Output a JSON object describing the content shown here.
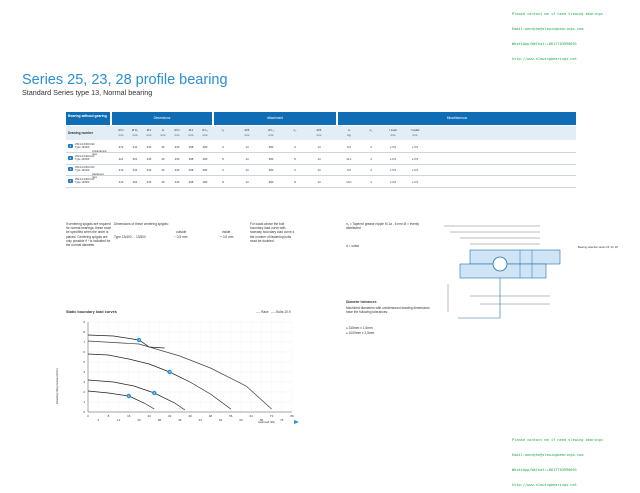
{
  "watermark_top": [
    "Please contact me if need slewing bearings",
    "Email:wendyhe@slewingbearings.com",
    "WhatsApp/WeChat:+8617703990691",
    "http://www.slewingbearings.net"
  ],
  "watermark_bottom": [
    "Please contact me if need slewing bearings",
    "Email:wendyhe@slewingbearings.com",
    "WhatsApp/WeChat:+8617703990691",
    "http://www.slewingbearings.net"
  ],
  "page": {
    "title": "Series 25, 23, 28 profile bearing",
    "subtitle": "Standard Series type 13, Normal bearing"
  },
  "table": {
    "col1_header": "Bearing without gearing",
    "group_dimensions": "Dimensions",
    "group_mounting": "Attachment",
    "group_misc": "Miscellaneous",
    "drawing_number_label": "Drawing number",
    "dim_cols": [
      "Ø D",
      "Ø D₁",
      "Ø d",
      "H",
      "Ø D",
      "Ø d",
      "Ø L₁"
    ],
    "dim_units": [
      "mm",
      "mm",
      "mm",
      "mm",
      "mm",
      "mm",
      "mm"
    ],
    "mount_cols": [
      "n₁",
      "Ø B",
      "Ø L₁",
      "n₂",
      "Ø B"
    ],
    "mount_units": [
      "",
      "mm",
      "mm",
      "",
      "mm"
    ],
    "misc_cols": [
      "m",
      "n₂",
      "f axial",
      "f radial"
    ],
    "misc_units": [
      "kg",
      "",
      "mm",
      "mm"
    ],
    "rows": [
      {
        "num": "1",
        "drawing": "250.14.0300.013 Type 13/400",
        "dims": [
          "372",
          "441",
          "233",
          "46",
          "340",
          "298",
          "380"
        ],
        "mount": [
          "6",
          "14",
          "380",
          "6",
          "14"
        ],
        "misc": [
          "9,6",
          "4",
          "≤ 0,5",
          "≤ 0,5"
        ]
      },
      {
        "num": "2",
        "drawing": "250.14.0400.013 Type 13/500",
        "dims": [
          "421",
          "461",
          "233",
          "46",
          "440",
          "398",
          "480"
        ],
        "mount": [
          "8",
          "14",
          "380",
          "8",
          "14"
        ],
        "misc": [
          "11,1",
          "4",
          "≤ 0,5",
          "≤ 0,5"
        ]
      },
      {
        "num": "3",
        "drawing": "250.14.0300.013 Type 13/400",
        "dims": [
          "313",
          "441",
          "233",
          "46",
          "340",
          "298",
          "380"
        ],
        "mount": [
          "6",
          "14",
          "380",
          "6",
          "14"
        ],
        "misc": [
          "9,6",
          "4",
          "≤ 0,5",
          "≤ 0,5"
        ]
      },
      {
        "num": "4",
        "drawing": "250.14.0400.013 Type 13/500",
        "dims": [
          "413",
          "461",
          "233",
          "46",
          "440",
          "398",
          "480"
        ],
        "mount": [
          "8",
          "14",
          "380",
          "8",
          "14"
        ],
        "misc": [
          "13,1",
          "4",
          "≤ 0,5",
          "≤ 0,5"
        ]
      }
    ],
    "group_labels": [
      "Unhardened race",
      "Hardened race"
    ]
  },
  "notes": {
    "centering": "If centering spigots are required for normal bearings, these must be specified when the order is placed. Centering spigots are only possible if * is indicated for the normal diameter.",
    "dims_title": "Dimensions of these centering spigots:",
    "dims_type": "Type 13/400 ... 13/500",
    "outside_label": "outside",
    "outside_val": "− 0,5 mm",
    "inside_label": "inside",
    "inside_val": "+ 0,5 mm",
    "loads": "For loads above the bolt boundary load curve with raceway boundary load curve 4 the number of fastening bolts must be doubled.",
    "legend1": "n₁ = Tapered grease nipple M 1a - 6 mm Ø = evenly distributed",
    "legend2": "d = subst"
  },
  "diameter": {
    "title": "Diameter tolerances",
    "text": "Machined diameters with untoleranced drawing dimensions have the following tolerances:",
    "line1": "≤ 315mm ± 1,6mm",
    "line2": "≤ 1000mm ± 2,5mm"
  },
  "drawing": {
    "side_label": "Bearing selection series 25, 23, 28"
  },
  "chart_data": {
    "type": "line",
    "title": "Static boundary load curves",
    "legend": [
      "Race",
      "Bolts 10.9"
    ],
    "xlabel": "Axial load (kN)",
    "ylabel": "Resulting tilting moment (kNm)",
    "x_ticks": [
      "0",
      "4",
      "8",
      "12",
      "16",
      "20",
      "24",
      "28",
      "32",
      "36",
      "40",
      "44",
      "48",
      "52",
      "56",
      "60",
      "64",
      "68",
      "72",
      "76",
      "80"
    ],
    "y_ticks": [
      "0",
      "1",
      "2",
      "3",
      "4",
      "5",
      "6",
      "7",
      "8",
      "9"
    ],
    "xlim": [
      0,
      80
    ],
    "ylim": [
      0,
      9
    ],
    "series": [
      {
        "name": "Race",
        "label": "4",
        "x": [
          0,
          10,
          20,
          24,
          30
        ],
        "y": [
          7.7,
          7.6,
          7.2,
          6.5,
          6.4
        ]
      },
      {
        "name": "Race",
        "label": "3",
        "x": [
          0,
          8,
          16,
          24,
          32,
          40,
          48,
          56
        ],
        "y": [
          5.8,
          5.7,
          5.3,
          4.8,
          4.0,
          3.0,
          1.8,
          0.3
        ]
      },
      {
        "name": "Race",
        "label": "2",
        "x": [
          0,
          10,
          18,
          26,
          34,
          38
        ],
        "y": [
          3.2,
          3.0,
          2.6,
          1.9,
          0.9,
          0.2
        ]
      },
      {
        "name": "Race",
        "label": "1",
        "x": [
          0,
          8,
          16,
          22,
          26
        ],
        "y": [
          2.1,
          1.9,
          1.6,
          0.9,
          0.3
        ]
      },
      {
        "name": "Bolts 10.9",
        "label": "",
        "x": [
          0,
          20,
          36,
          48,
          62,
          72
        ],
        "y": [
          7.1,
          6.8,
          5.6,
          4.4,
          2.6,
          0.3
        ]
      }
    ]
  }
}
